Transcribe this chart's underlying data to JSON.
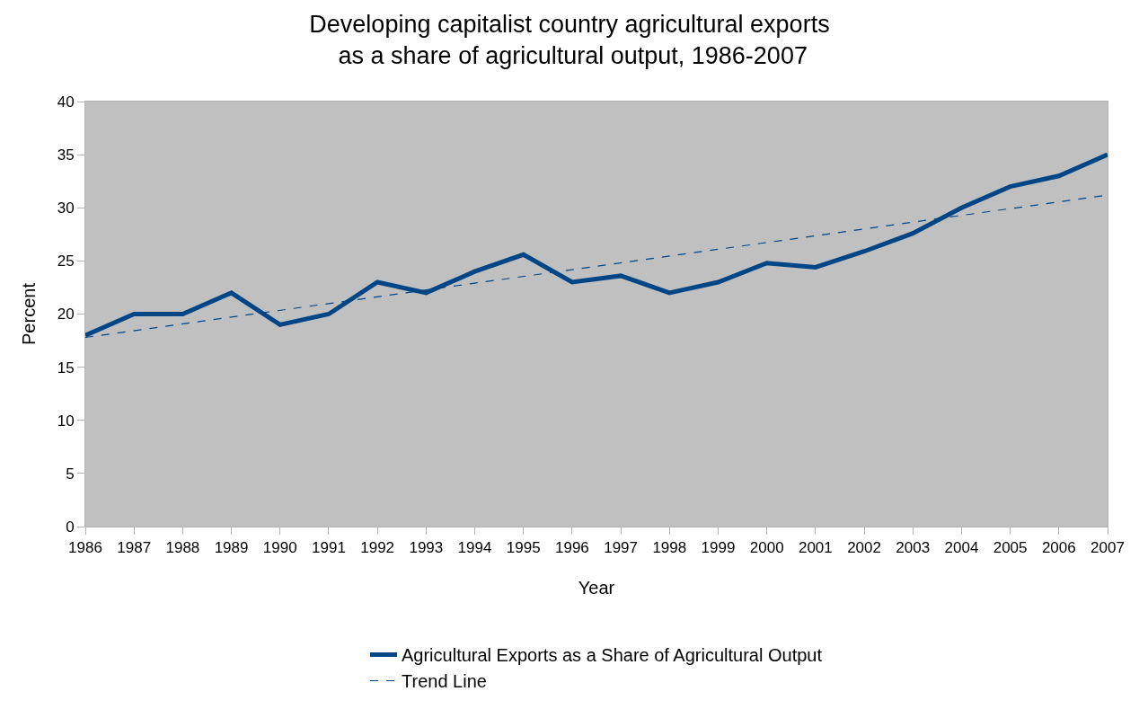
{
  "chart_data": {
    "type": "line",
    "title": "Developing capitalist country agricultural exports\n as a share of agricultural output, 1986-2007",
    "xlabel": "Year",
    "ylabel": "Percent",
    "x": [
      1986,
      1987,
      1988,
      1989,
      1990,
      1991,
      1992,
      1993,
      1994,
      1995,
      1996,
      1997,
      1998,
      1999,
      2000,
      2001,
      2002,
      2003,
      2004,
      2005,
      2006,
      2007
    ],
    "series": [
      {
        "name": "Agricultural Exports as a Share of Agricultural Output",
        "color": "#004586",
        "line_style": "solid",
        "values": [
          18,
          20,
          20,
          22,
          19,
          20,
          23,
          22,
          24,
          25.6,
          23,
          23.6,
          22,
          23,
          24.8,
          24.4,
          25.9,
          27.6,
          30,
          32,
          33,
          35
        ]
      },
      {
        "name": "Trend Line",
        "color": "#004586",
        "line_style": "dashed",
        "x": [
          1986,
          2007
        ],
        "values": [
          17.8,
          31.2
        ]
      }
    ],
    "xlim": [
      1986,
      2007
    ],
    "xticks": [
      1986,
      1987,
      1988,
      1989,
      1990,
      1991,
      1992,
      1993,
      1994,
      1995,
      1996,
      1997,
      1998,
      1999,
      2000,
      2001,
      2002,
      2003,
      2004,
      2005,
      2006,
      2007
    ],
    "ylim": [
      0,
      40
    ],
    "yticks": [
      0,
      5,
      10,
      15,
      20,
      25,
      30,
      35,
      40
    ],
    "grid": false,
    "legend": "bottom",
    "marker": "none"
  }
}
